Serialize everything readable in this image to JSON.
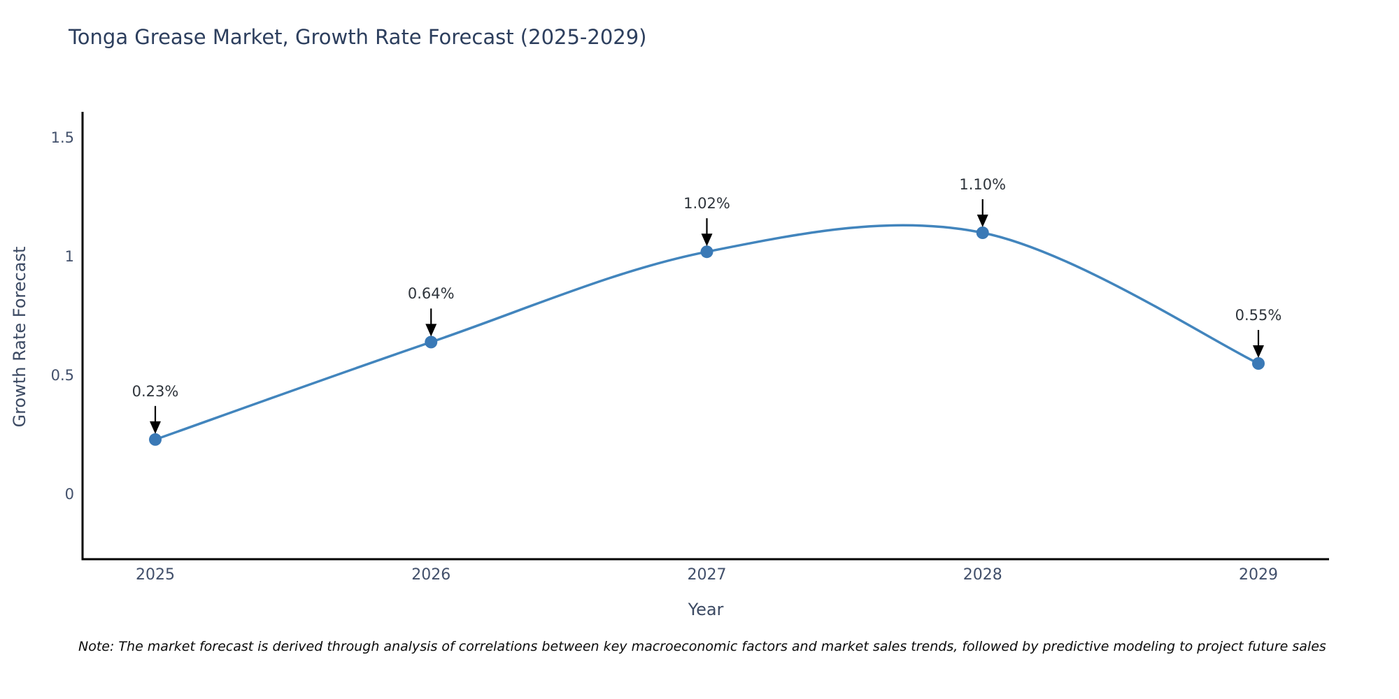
{
  "title": "Tonga Grease Market, Growth Rate Forecast (2025-2029)",
  "note": "Note: The market forecast is derived through analysis of correlations between key macroeconomic factors and market sales trends, followed by predictive modeling to project future sales",
  "colors": {
    "line": "#4285bd",
    "marker": "#3a79b6",
    "axis": "#000000",
    "arrow": "#000000",
    "title_text": "#2d3f5e",
    "tick_text": "#42506b",
    "annotation_text": "#2f353c",
    "background": "#ffffff"
  },
  "chart_data": {
    "type": "line",
    "title": "Tonga Grease Market, Growth Rate Forecast (2025-2029)",
    "xlabel": "Year",
    "ylabel": "Growth Rate Forecast",
    "categories": [
      "2025",
      "2026",
      "2027",
      "2028",
      "2029"
    ],
    "values": [
      0.23,
      0.64,
      1.02,
      1.1,
      0.55
    ],
    "point_labels": [
      "0.23%",
      "0.64%",
      "1.02%",
      "1.10%",
      "0.55%"
    ],
    "ytick_values": [
      1.5,
      1,
      0.5,
      0
    ],
    "ytick_labels": [
      "1.5",
      "1",
      "0.5",
      "0"
    ],
    "ylim": [
      -0.27,
      1.61
    ],
    "line_shape": "spline",
    "markers": true,
    "grid": false,
    "legend_position": "none"
  }
}
